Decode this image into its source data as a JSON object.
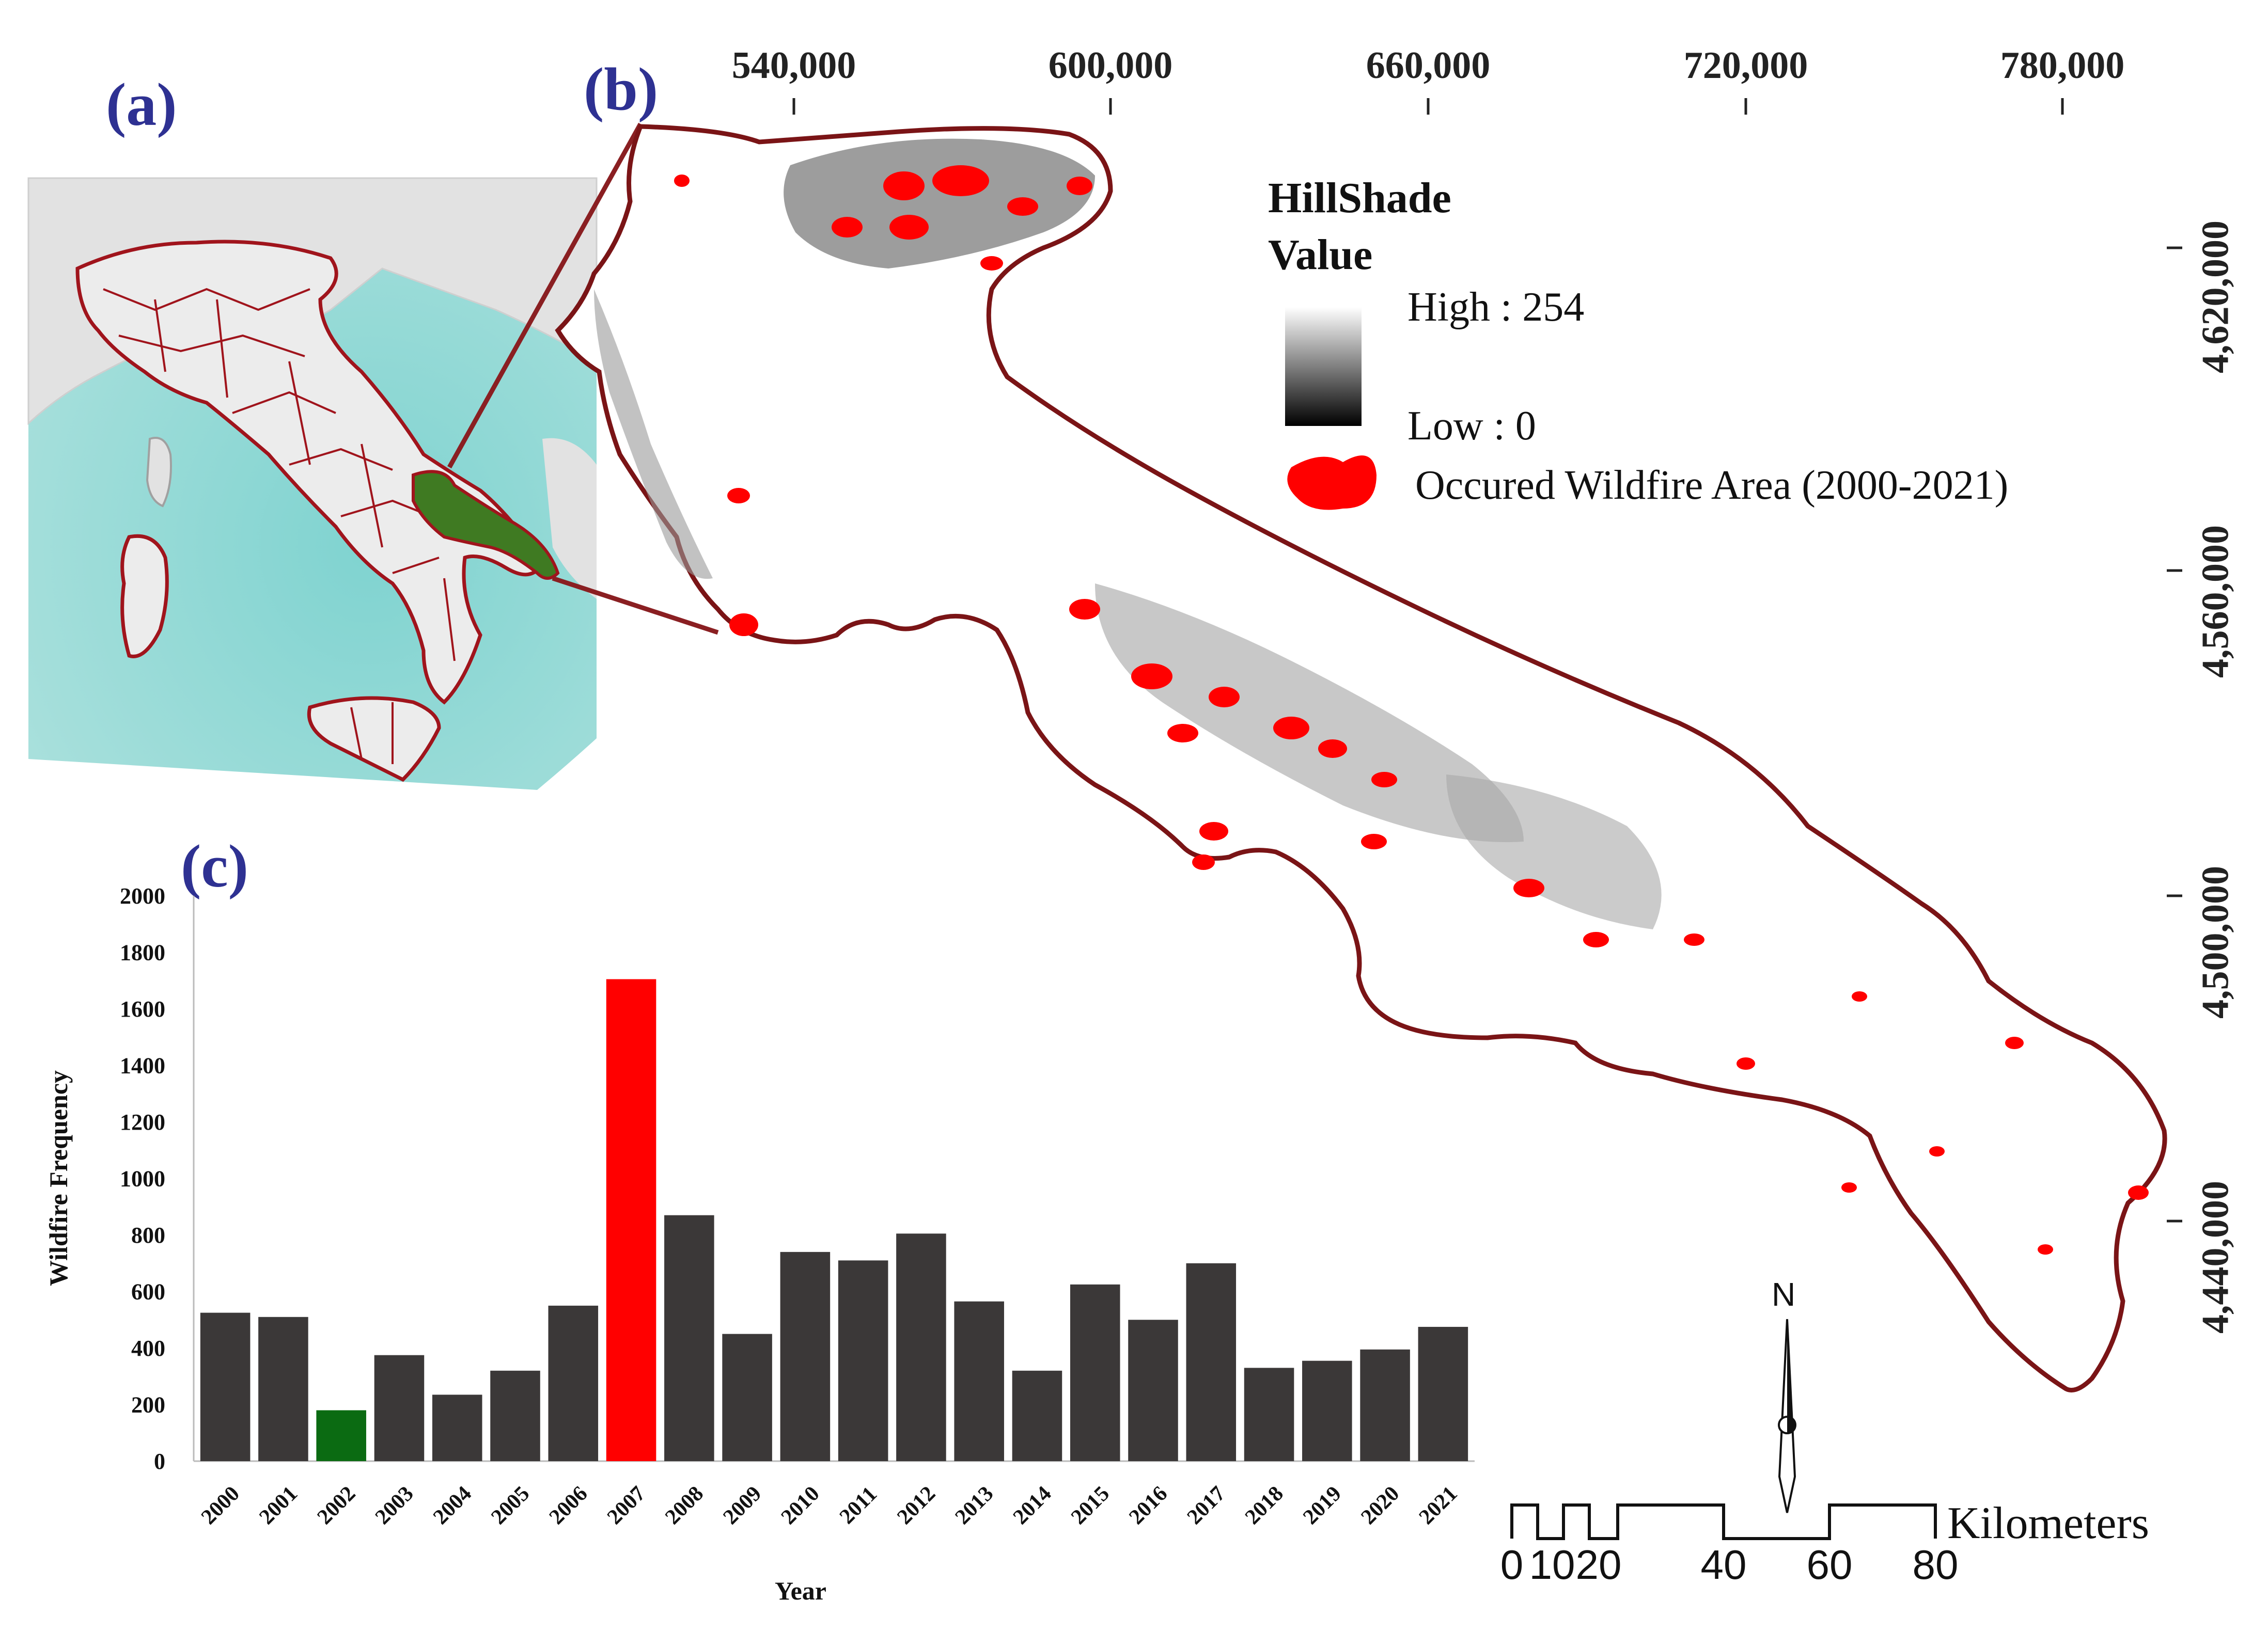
{
  "panels": {
    "a": "(a)",
    "b": "(b)",
    "c": "(c)"
  },
  "map": {
    "easting_ticks": [
      "540,000",
      "600,000",
      "660,000",
      "720,000",
      "780,000"
    ],
    "northing_ticks": [
      "4,620,000",
      "4,560,000",
      "4,500,000",
      "4,440,000"
    ],
    "legend": {
      "title_line1": "HillShade",
      "title_line2": "Value",
      "high": "High : 254",
      "low": "Low : 0",
      "wildfire": "Occured Wildfire Area (2000-2021)",
      "wildfire_color": "#ff0000",
      "border_color": "#7a1416"
    },
    "scale_bar": {
      "labels": [
        "0",
        "10",
        "20",
        "40",
        "60",
        "80"
      ],
      "unit": "Kilometers"
    },
    "north_arrow": "N",
    "inset_colors": {
      "sea": "#8fd6d2",
      "land": "#e4e4e4",
      "boundaries": "#a0141c",
      "highlight": "#3f7a22"
    }
  },
  "chart_data": {
    "type": "bar",
    "title": "",
    "xlabel": "Year",
    "ylabel": "Wildfire Frequency",
    "ylim": [
      0,
      2000
    ],
    "yticks": [
      0,
      200,
      400,
      600,
      800,
      1000,
      1200,
      1400,
      1600,
      1800,
      2000
    ],
    "categories": [
      "2000",
      "2001",
      "2002",
      "2003",
      "2004",
      "2005",
      "2006",
      "2007",
      "2008",
      "2009",
      "2010",
      "2011",
      "2012",
      "2013",
      "2014",
      "2015",
      "2016",
      "2017",
      "2018",
      "2019",
      "2020",
      "2021"
    ],
    "values": [
      525,
      510,
      180,
      375,
      235,
      320,
      550,
      1705,
      870,
      450,
      740,
      710,
      805,
      565,
      320,
      625,
      500,
      700,
      330,
      355,
      395,
      475
    ],
    "colors": {
      "default": "#3b3838",
      "min": "#0b6b12",
      "max": "#ff0000"
    },
    "highlight": {
      "min_year": "2002",
      "max_year": "2007"
    },
    "grid": false,
    "legend": "none"
  }
}
